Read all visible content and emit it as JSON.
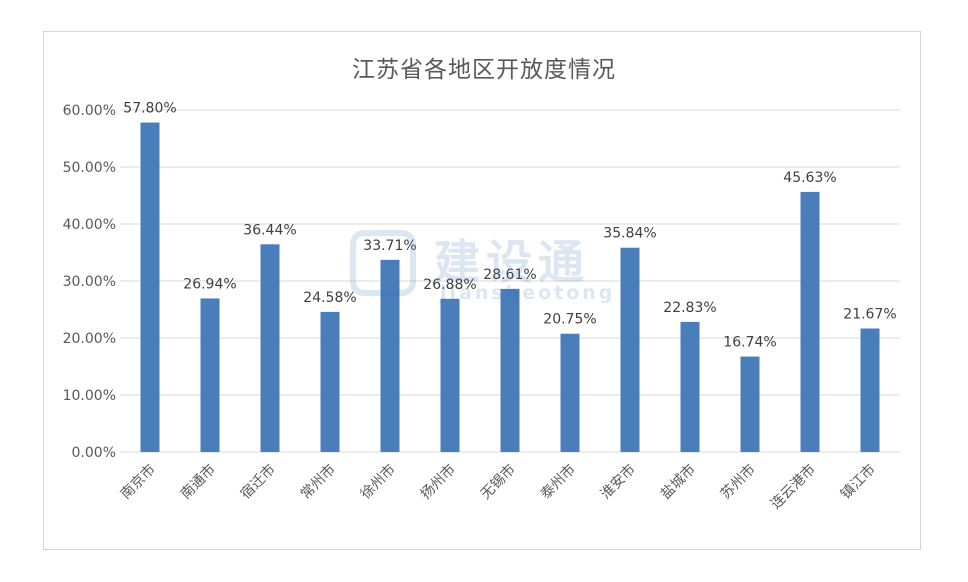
{
  "chart_data": {
    "type": "bar",
    "title": "江苏省各地区开放度情况",
    "xlabel": "",
    "ylabel": "",
    "categories": [
      "南京市",
      "南通市",
      "宿迁市",
      "常州市",
      "徐州市",
      "扬州市",
      "无锡市",
      "泰州市",
      "淮安市",
      "盐城市",
      "苏州市",
      "连云港市",
      "镇江市"
    ],
    "values": [
      57.8,
      26.94,
      36.44,
      24.58,
      33.71,
      26.88,
      28.61,
      20.75,
      35.84,
      22.83,
      16.74,
      45.63,
      21.67
    ],
    "value_labels": [
      "57.80%",
      "26.94%",
      "36.44%",
      "24.58%",
      "33.71%",
      "26.88%",
      "28.61%",
      "20.75%",
      "35.84%",
      "22.83%",
      "16.74%",
      "45.63%",
      "21.67%"
    ],
    "ylim": [
      0,
      60
    ],
    "yticks": [
      0,
      10,
      20,
      30,
      40,
      50,
      60
    ],
    "ytick_labels": [
      "0.00%",
      "10.00%",
      "20.00%",
      "30.00%",
      "40.00%",
      "50.00%",
      "60.00%"
    ],
    "grid": true,
    "legend": false,
    "colors": {
      "bar": "#4a7ebb",
      "grid": "#d9d9d9",
      "text": "#595959",
      "label": "#404040"
    }
  },
  "watermark": {
    "text_cn": "建设通",
    "text_en": "jiansheotong"
  }
}
